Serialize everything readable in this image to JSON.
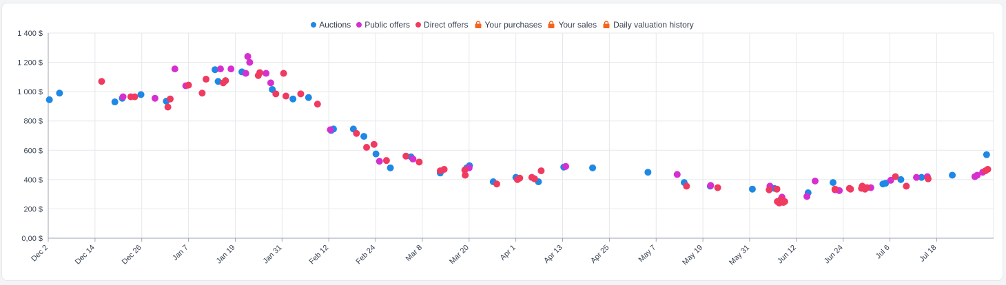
{
  "chart_data": {
    "type": "scatter",
    "title": "",
    "xlabel": "",
    "ylabel": "",
    "ylim": [
      0,
      1400
    ],
    "y_ticks": [
      "0,00 $",
      "200 $",
      "400 $",
      "600 $",
      "800 $",
      "1 000 $",
      "1 200 $",
      "1 400 $"
    ],
    "y_tick_values": [
      0,
      200,
      400,
      600,
      800,
      1000,
      1200,
      1400
    ],
    "xlim": [
      "Dec 2",
      "Jul 29"
    ],
    "x_ticks": [
      "Dec 2",
      "Dec 14",
      "Dec 26",
      "Jan 7",
      "Jan 19",
      "Jan 31",
      "Feb 12",
      "Feb 24",
      "Mar 8",
      "Mar 20",
      "Apr 1",
      "Apr 13",
      "Apr 25",
      "May 7",
      "May 19",
      "May 31",
      "Jun 12",
      "Jun 24",
      "Jul 6",
      "Jul 18"
    ],
    "x_tick_days": [
      0,
      12,
      24,
      36,
      48,
      60,
      72,
      84,
      96,
      108,
      120,
      132,
      144,
      156,
      168,
      180,
      192,
      204,
      216,
      228
    ],
    "grid": true,
    "legend_position": "top-center",
    "legend": [
      {
        "name": "Auctions",
        "marker": "dot",
        "color": "#1e88e5"
      },
      {
        "name": "Public offers",
        "marker": "dot",
        "color": "#d62fd0"
      },
      {
        "name": "Direct offers",
        "marker": "dot",
        "color": "#f03a5f"
      },
      {
        "name": "Your purchases",
        "marker": "bag-icon",
        "color": "#f4641e"
      },
      {
        "name": "Your sales",
        "marker": "bag-icon",
        "color": "#f4641e"
      },
      {
        "name": "Daily valuation history",
        "marker": "bag-icon",
        "color": "#f4641e"
      }
    ],
    "series": [
      {
        "name": "Auctions",
        "color": "#1e88e5",
        "points": [
          [
            0.3,
            945
          ],
          [
            2.9,
            990
          ],
          [
            17.1,
            930
          ],
          [
            19.0,
            955
          ],
          [
            23.8,
            980
          ],
          [
            30.3,
            935
          ],
          [
            42.8,
            1150
          ],
          [
            43.6,
            1070
          ],
          [
            49.7,
            1135
          ],
          [
            57.5,
            1015
          ],
          [
            62.8,
            950
          ],
          [
            66.8,
            960
          ],
          [
            72.6,
            735
          ],
          [
            73.2,
            745
          ],
          [
            78.3,
            745
          ],
          [
            81.0,
            695
          ],
          [
            84.1,
            575
          ],
          [
            87.8,
            480
          ],
          [
            93.1,
            555
          ],
          [
            100.6,
            445
          ],
          [
            107.4,
            480
          ],
          [
            108.1,
            495
          ],
          [
            114.2,
            385
          ],
          [
            120.0,
            415
          ],
          [
            125.8,
            385
          ],
          [
            132.3,
            485
          ],
          [
            139.7,
            480
          ],
          [
            153.9,
            450
          ],
          [
            163.2,
            380
          ],
          [
            169.9,
            355
          ],
          [
            180.7,
            335
          ],
          [
            186.3,
            340
          ],
          [
            195.0,
            310
          ],
          [
            201.4,
            380
          ],
          [
            214.2,
            370
          ],
          [
            214.9,
            375
          ],
          [
            218.8,
            400
          ],
          [
            224.1,
            415
          ],
          [
            232.0,
            430
          ],
          [
            240.8,
            570
          ]
        ]
      },
      {
        "name": "Public offers",
        "color": "#d62fd0",
        "points": [
          [
            19.2,
            965
          ],
          [
            27.4,
            955
          ],
          [
            32.5,
            1155
          ],
          [
            35.3,
            1040
          ],
          [
            44.2,
            1155
          ],
          [
            46.9,
            1155
          ],
          [
            50.7,
            1125
          ],
          [
            51.2,
            1240
          ],
          [
            51.7,
            1200
          ],
          [
            55.9,
            1125
          ],
          [
            57.1,
            1060
          ],
          [
            72.4,
            740
          ],
          [
            85.0,
            525
          ],
          [
            93.6,
            540
          ],
          [
            108.0,
            480
          ],
          [
            132.8,
            490
          ],
          [
            161.4,
            435
          ],
          [
            170.0,
            360
          ],
          [
            185.2,
            355
          ],
          [
            188.3,
            280
          ],
          [
            194.7,
            285
          ],
          [
            196.8,
            390
          ],
          [
            201.9,
            330
          ],
          [
            203.0,
            325
          ],
          [
            211.1,
            345
          ],
          [
            216.2,
            395
          ],
          [
            222.8,
            415
          ],
          [
            225.6,
            420
          ],
          [
            237.8,
            420
          ],
          [
            238.4,
            430
          ],
          [
            239.8,
            450
          ]
        ]
      },
      {
        "name": "Direct offers",
        "color": "#f03a5f",
        "points": [
          [
            13.7,
            1070
          ],
          [
            21.2,
            965
          ],
          [
            22.2,
            965
          ],
          [
            30.7,
            895
          ],
          [
            31.3,
            950
          ],
          [
            36.0,
            1045
          ],
          [
            39.5,
            990
          ],
          [
            40.5,
            1085
          ],
          [
            44.9,
            1060
          ],
          [
            45.5,
            1075
          ],
          [
            53.9,
            1110
          ],
          [
            54.3,
            1130
          ],
          [
            58.4,
            985
          ],
          [
            60.4,
            1125
          ],
          [
            61.0,
            970
          ],
          [
            64.8,
            985
          ],
          [
            69.1,
            915
          ],
          [
            79.1,
            715
          ],
          [
            81.7,
            620
          ],
          [
            83.6,
            640
          ],
          [
            86.8,
            530
          ],
          [
            91.8,
            560
          ],
          [
            95.2,
            520
          ],
          [
            100.6,
            460
          ],
          [
            101.6,
            470
          ],
          [
            106.9,
            465
          ],
          [
            107.0,
            430
          ],
          [
            115.1,
            370
          ],
          [
            120.4,
            400
          ],
          [
            121.0,
            410
          ],
          [
            124.1,
            415
          ],
          [
            124.8,
            405
          ],
          [
            126.5,
            460
          ],
          [
            163.8,
            355
          ],
          [
            171.8,
            345
          ],
          [
            185.0,
            330
          ],
          [
            187.0,
            335
          ],
          [
            187.1,
            250
          ],
          [
            187.6,
            240
          ],
          [
            188.0,
            265
          ],
          [
            188.6,
            245
          ],
          [
            188.7,
            245
          ],
          [
            189.0,
            250
          ],
          [
            201.9,
            335
          ],
          [
            205.6,
            340
          ],
          [
            205.9,
            335
          ],
          [
            208.7,
            340
          ],
          [
            208.9,
            355
          ],
          [
            209.6,
            335
          ],
          [
            210.1,
            345
          ],
          [
            217.4,
            420
          ],
          [
            220.2,
            355
          ],
          [
            225.8,
            405
          ],
          [
            240.5,
            460
          ],
          [
            241.1,
            470
          ]
        ]
      }
    ]
  }
}
